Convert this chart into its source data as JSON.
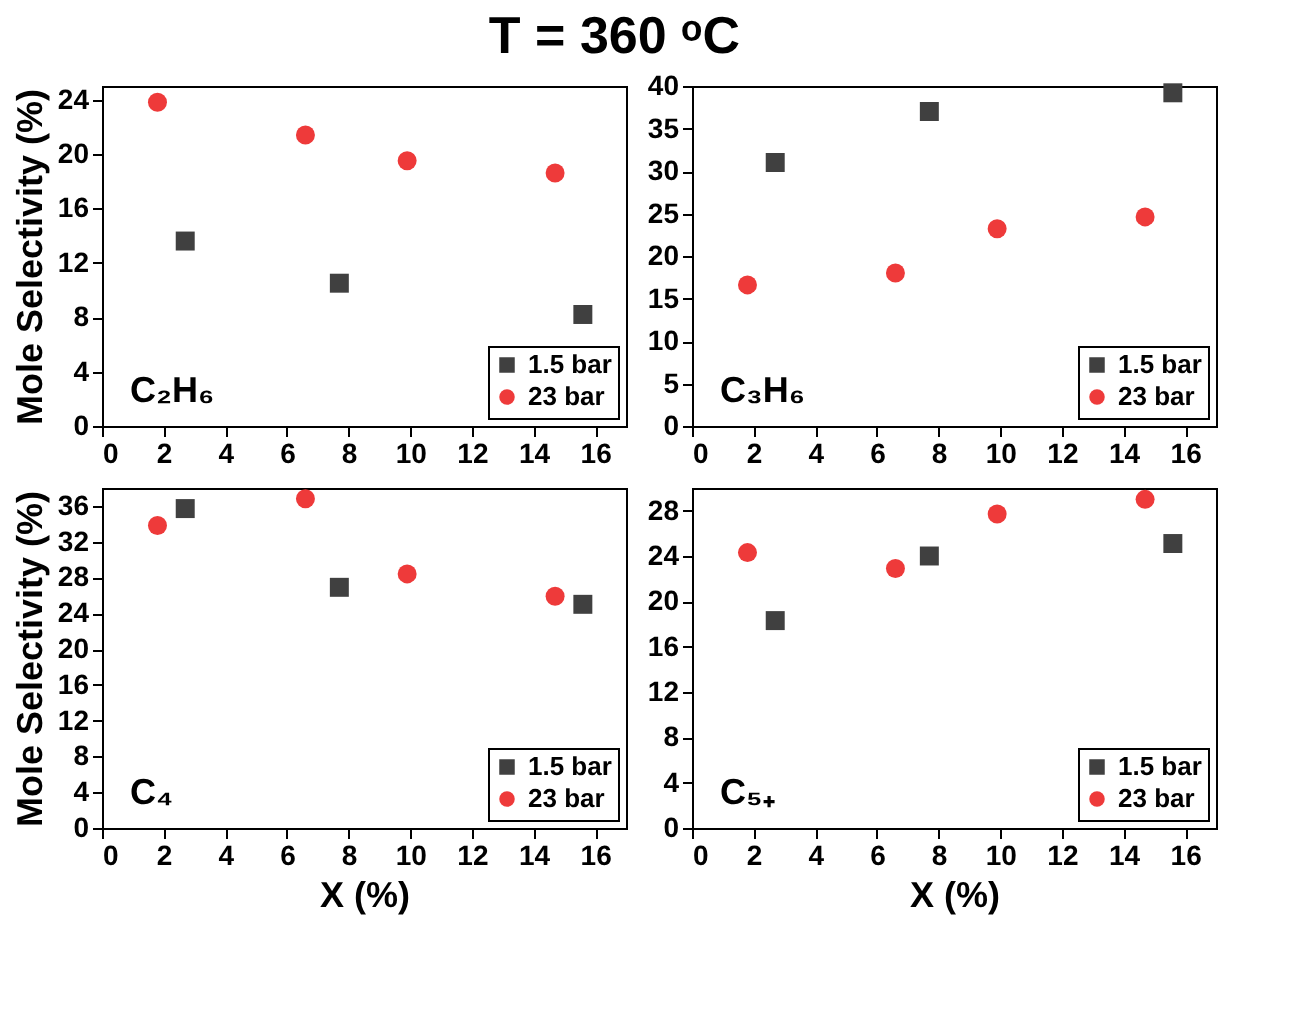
{
  "chart_data": [
    {
      "type": "scatter",
      "title": "T = 360 ᵒC",
      "ylabel": "Mole Selectivity (%)",
      "annotations": [
        "C₂H₆"
      ],
      "xlim": [
        0,
        17
      ],
      "xticks": [
        0,
        2,
        4,
        6,
        8,
        10,
        12,
        14,
        16
      ],
      "ylim": [
        0,
        25
      ],
      "yticks": [
        0,
        4,
        8,
        12,
        16,
        20,
        24
      ],
      "grid": false,
      "legend": "bottom right",
      "series": [
        {
          "name": "1.5 bar",
          "color": "#404040",
          "marker": "square",
          "x": [
            2.7,
            7.7,
            15.6
          ],
          "values": [
            13.6,
            10.5,
            8.2
          ]
        },
        {
          "name": "23 bar",
          "color": "#ee3a3a",
          "marker": "circle",
          "x": [
            1.8,
            6.6,
            9.9,
            14.7
          ],
          "values": [
            23.8,
            21.4,
            19.5,
            18.6
          ]
        }
      ]
    },
    {
      "type": "scatter",
      "annotations": [
        "C₃H₆"
      ],
      "xlim": [
        0,
        17
      ],
      "xticks": [
        0,
        2,
        4,
        6,
        8,
        10,
        12,
        14,
        16
      ],
      "ylim": [
        0,
        40
      ],
      "yticks": [
        0,
        5,
        10,
        15,
        20,
        25,
        30,
        35,
        40
      ],
      "grid": false,
      "legend": "bottom right",
      "series": [
        {
          "name": "1.5 bar",
          "color": "#404040",
          "marker": "square",
          "x": [
            2.7,
            7.7,
            15.6
          ],
          "values": [
            31.0,
            37.0,
            39.2
          ]
        },
        {
          "name": "23 bar",
          "color": "#ee3a3a",
          "marker": "circle",
          "x": [
            1.8,
            6.6,
            9.9,
            14.7
          ],
          "values": [
            16.6,
            18.0,
            23.2,
            24.6
          ]
        }
      ]
    },
    {
      "type": "scatter",
      "ylabel": "Mole Selectivity (%)",
      "xlabel": "X (%)",
      "annotations": [
        "C₄"
      ],
      "xlim": [
        0,
        17
      ],
      "xticks": [
        0,
        2,
        4,
        6,
        8,
        10,
        12,
        14,
        16
      ],
      "ylim": [
        0,
        38
      ],
      "yticks": [
        0,
        4,
        8,
        12,
        16,
        20,
        24,
        28,
        32,
        36
      ],
      "grid": false,
      "legend": "bottom right",
      "series": [
        {
          "name": "1.5 bar",
          "color": "#404040",
          "marker": "square",
          "x": [
            2.7,
            7.7,
            15.6
          ],
          "values": [
            35.7,
            26.9,
            25.0
          ]
        },
        {
          "name": "23 bar",
          "color": "#ee3a3a",
          "marker": "circle",
          "x": [
            1.8,
            6.6,
            9.9,
            14.7
          ],
          "values": [
            33.8,
            36.8,
            28.4,
            25.9
          ]
        }
      ]
    },
    {
      "type": "scatter",
      "xlabel": "X (%)",
      "annotations": [
        "C₅₊"
      ],
      "xlim": [
        0,
        17
      ],
      "xticks": [
        0,
        2,
        4,
        6,
        8,
        10,
        12,
        14,
        16
      ],
      "ylim": [
        0,
        30
      ],
      "yticks": [
        0,
        4,
        8,
        12,
        16,
        20,
        24,
        28
      ],
      "grid": false,
      "legend": "bottom right",
      "series": [
        {
          "name": "1.5 bar",
          "color": "#404040",
          "marker": "square",
          "x": [
            2.7,
            7.7,
            15.6
          ],
          "values": [
            18.3,
            24.0,
            25.1
          ]
        },
        {
          "name": "23 bar",
          "color": "#ee3a3a",
          "marker": "circle",
          "x": [
            1.8,
            6.6,
            9.9,
            14.7
          ],
          "values": [
            24.3,
            22.9,
            27.7,
            29.0
          ]
        }
      ]
    }
  ]
}
